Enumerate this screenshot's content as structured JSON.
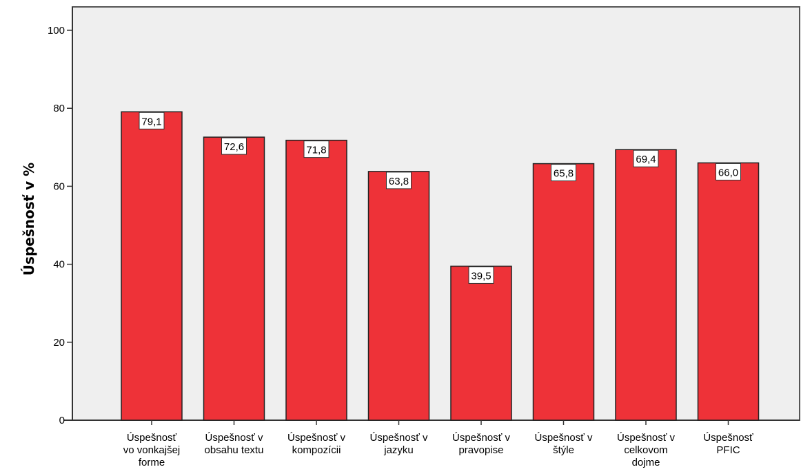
{
  "chart_data": {
    "type": "bar",
    "title": "",
    "xlabel": "",
    "ylabel": "Úspešnosť v %",
    "ylim": [
      0,
      100
    ],
    "yticks": [
      0,
      20,
      40,
      60,
      80,
      100
    ],
    "grid": false,
    "categories": [
      [
        "Úspešnosť",
        "vo vonkajšej",
        "forme"
      ],
      [
        "Úspešnosť v",
        "obsahu textu"
      ],
      [
        "Úspešnosť v",
        "kompozícii"
      ],
      [
        "Úspešnosť v",
        "jazyku"
      ],
      [
        "Úspešnosť v",
        "pravopise"
      ],
      [
        "Úspešnosť v",
        "štýle"
      ],
      [
        "Úspešnosť v",
        "celkovom",
        "dojme"
      ],
      [
        "Úspešnosť",
        "PFIC"
      ]
    ],
    "values": [
      79.1,
      72.6,
      71.8,
      63.8,
      39.5,
      65.8,
      69.4,
      66.0
    ],
    "data_labels": [
      "79,1",
      "72,6",
      "71,8",
      "63,8",
      "39,5",
      "65,8",
      "69,4",
      "66,0"
    ],
    "colors": {
      "bar_fill": "#ee3238",
      "bar_stroke": "#222222",
      "plot_background": "#efefef",
      "frame": "#555555"
    }
  }
}
